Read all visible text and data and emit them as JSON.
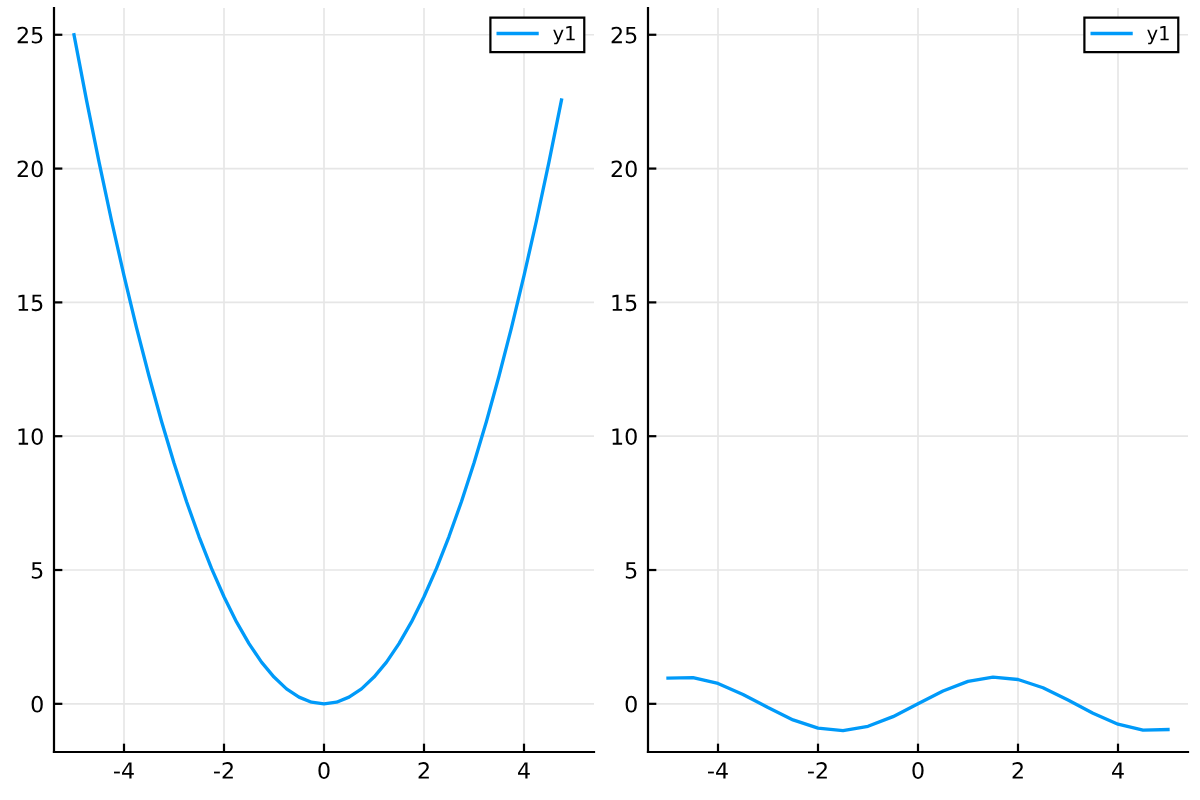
{
  "chart_data": [
    {
      "type": "line",
      "x": [
        -5,
        -4.75,
        -4.5,
        -4.25,
        -4,
        -3.75,
        -3.5,
        -3.25,
        -3,
        -2.75,
        -2.5,
        -2.25,
        -2,
        -1.75,
        -1.5,
        -1.25,
        -1,
        -0.75,
        -0.5,
        -0.25,
        0,
        0.25,
        0.5,
        0.75,
        1,
        1.25,
        1.5,
        1.75,
        2,
        2.25,
        2.5,
        2.75,
        3,
        3.25,
        3.5,
        3.75,
        4,
        4.25,
        4.5,
        4.75
      ],
      "series": [
        {
          "name": "y1",
          "color": "#009af9",
          "values": [
            25,
            22.56,
            20.25,
            18.06,
            16,
            14.06,
            12.25,
            10.56,
            9,
            7.56,
            6.25,
            5.06,
            4,
            3.06,
            2.25,
            1.56,
            1,
            0.56,
            0.25,
            0.06,
            0,
            0.06,
            0.25,
            0.56,
            1,
            1.56,
            2.25,
            3.06,
            4,
            5.06,
            6.25,
            7.56,
            9,
            10.56,
            12.25,
            14.06,
            16,
            18.06,
            20.25,
            22.56
          ]
        }
      ],
      "xlim": [
        -5.4,
        5.4
      ],
      "ylim": [
        -1.8,
        26
      ],
      "xticks": [
        -4,
        -2,
        0,
        2,
        4
      ],
      "yticks": [
        0,
        5,
        10,
        15,
        20,
        25
      ],
      "grid": true,
      "legend": "top right",
      "marker": "none",
      "line_style": "solid"
    },
    {
      "type": "line",
      "x": [
        -5,
        -4.5,
        -4,
        -3.5,
        -3,
        -2.5,
        -2,
        -1.5,
        -1,
        -0.5,
        0,
        0.5,
        1,
        1.5,
        2,
        2.5,
        3,
        3.5,
        4,
        4.5,
        5
      ],
      "series": [
        {
          "name": "y1",
          "color": "#009af9",
          "values": [
            0.96,
            0.98,
            0.76,
            0.35,
            -0.14,
            -0.6,
            -0.91,
            -1,
            -0.84,
            -0.48,
            0,
            0.48,
            0.84,
            1,
            0.91,
            0.6,
            0.14,
            -0.35,
            -0.76,
            -0.98,
            -0.96
          ]
        }
      ],
      "xlim": [
        -5.4,
        5.4
      ],
      "ylim": [
        -1.8,
        26
      ],
      "xticks": [
        -4,
        -2,
        0,
        2,
        4
      ],
      "yticks": [
        0,
        5,
        10,
        15,
        20,
        25
      ],
      "grid": true,
      "legend": "top right",
      "marker": "none",
      "line_style": "solid"
    }
  ]
}
